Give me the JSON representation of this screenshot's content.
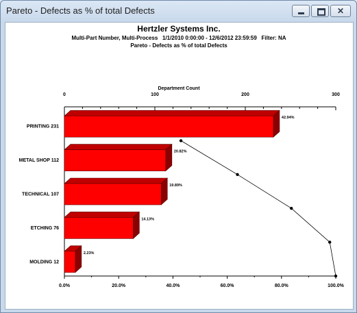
{
  "window": {
    "title": "Pareto - Defects as % of total Defects"
  },
  "header": {
    "company": "Hertzler Systems Inc.",
    "subtitle": "Multi-Part Number, Multi-Process   1/1/2010 0:00:00 - 12/6/2012 23:59:59   Filter: NA",
    "chart_title": "Pareto - Defects as % of total Defects"
  },
  "chart_data": {
    "type": "bar",
    "orientation": "horizontal",
    "title": "Pareto - Defects as % of total Defects",
    "top_axis_label": "Department Count",
    "top_axis_ticks": [
      0,
      100,
      200,
      300
    ],
    "top_axis_range": [
      0,
      300
    ],
    "bottom_axis_ticks": [
      "0.0%",
      "20.0%",
      "40.0%",
      "60.0%",
      "80.0%",
      "100.0%"
    ],
    "bottom_axis_range": [
      0,
      100
    ],
    "categories": [
      {
        "label": "PRINTING  231",
        "name": "PRINTING",
        "value": 231,
        "pct_label": "42.94%"
      },
      {
        "label": "METAL SHOP  112",
        "name": "METAL SHOP",
        "value": 112,
        "pct_label": "20.82%"
      },
      {
        "label": "TECHNICAL  107",
        "name": "TECHNICAL",
        "value": 107,
        "pct_label": "19.89%"
      },
      {
        "label": "ETCHING  76",
        "name": "ETCHING",
        "value": 76,
        "pct_label": "14.13%"
      },
      {
        "label": "MOLDING  12",
        "name": "MOLDING",
        "value": 12,
        "pct_label": "2.23%"
      }
    ],
    "cumulative_pct": [
      42.94,
      63.76,
      83.65,
      97.78,
      100.0
    ],
    "colors": {
      "bar_front": "#ff0000",
      "bar_top": "#c00000",
      "bar_side": "#8b0000",
      "bar_outline": "#5a0000",
      "line": "#000000"
    },
    "grid": false
  }
}
